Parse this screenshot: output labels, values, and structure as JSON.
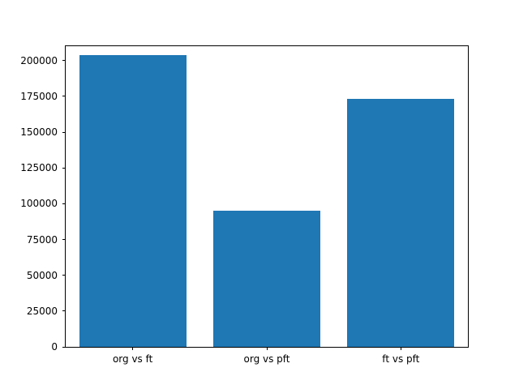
{
  "chart_data": {
    "type": "bar",
    "categories": [
      "org vs ft",
      "org vs pft",
      "ft vs pft"
    ],
    "values": [
      204000,
      95000,
      173000
    ],
    "title": "",
    "xlabel": "",
    "ylabel": "",
    "ylim": [
      0,
      210000
    ],
    "yticks": [
      0,
      25000,
      50000,
      75000,
      100000,
      125000,
      150000,
      175000,
      200000
    ],
    "bar_color": "#1f77b4",
    "grid": false,
    "legend": null
  },
  "colors": {
    "background": "#ffffff",
    "axis": "#000000",
    "text": "#000000",
    "bar": "#1f77b4"
  }
}
